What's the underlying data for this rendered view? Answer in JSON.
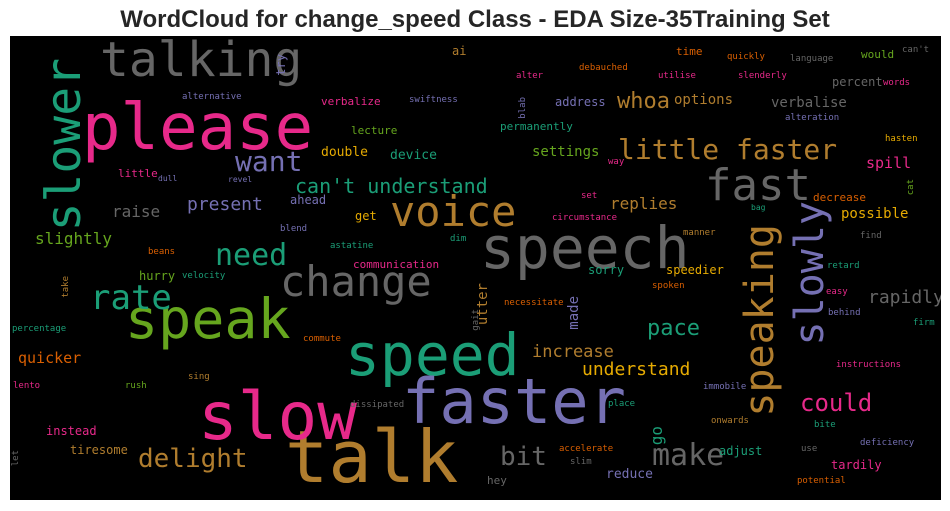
{
  "title": "WordCloud for change_speed Class - EDA Size-35Training Set",
  "words": [
    {
      "t": "talk",
      "c": "#b07d2e"
    },
    {
      "t": "speed",
      "c": "#1b9e77"
    },
    {
      "t": "slow",
      "c": "#e7298a"
    },
    {
      "t": "faster",
      "c": "#7570b3"
    },
    {
      "t": "speech",
      "c": "#666666"
    },
    {
      "t": "please",
      "c": "#e7298a"
    },
    {
      "t": "speak",
      "c": "#66a61e"
    },
    {
      "t": "slower",
      "c": "#1b9e77"
    },
    {
      "t": "talking",
      "c": "#666666"
    },
    {
      "t": "change",
      "c": "#666666"
    },
    {
      "t": "voice",
      "c": "#b07d2e"
    },
    {
      "t": "fast",
      "c": "#666666"
    },
    {
      "t": "speaking",
      "c": "#b07d2e"
    },
    {
      "t": "slowly",
      "c": "#7570b3"
    },
    {
      "t": "rate",
      "c": "#1b9e77"
    },
    {
      "t": "little faster",
      "c": "#b07d2e"
    },
    {
      "t": "need",
      "c": "#1b9e77"
    },
    {
      "t": "want",
      "c": "#7570b3"
    },
    {
      "t": "make",
      "c": "#666666"
    },
    {
      "t": "delight",
      "c": "#b07d2e"
    },
    {
      "t": "could",
      "c": "#e7298a"
    },
    {
      "t": "can't understand",
      "c": "#1b9e77"
    },
    {
      "t": "bit",
      "c": "#666666"
    },
    {
      "t": "pace",
      "c": "#1b9e77"
    },
    {
      "t": "whoa",
      "c": "#b07d2e"
    },
    {
      "t": "present",
      "c": "#7570b3"
    },
    {
      "t": "rapidly",
      "c": "#666666"
    },
    {
      "t": "understand",
      "c": "#e6ab02"
    },
    {
      "t": "increase",
      "c": "#b07d2e"
    },
    {
      "t": "slightly",
      "c": "#66a61e"
    },
    {
      "t": "raise",
      "c": "#666666"
    },
    {
      "t": "replies",
      "c": "#b07d2e"
    },
    {
      "t": "quicker",
      "c": "#d95f02"
    },
    {
      "t": "spill",
      "c": "#e7298a"
    },
    {
      "t": "settings",
      "c": "#66a61e"
    },
    {
      "t": "options",
      "c": "#b07d2e"
    },
    {
      "t": "verbalise",
      "c": "#666666"
    },
    {
      "t": "possible",
      "c": "#e6ab02"
    },
    {
      "t": "made",
      "c": "#7570b3"
    },
    {
      "t": "utter",
      "c": "#b07d2e"
    },
    {
      "t": "go",
      "c": "#1b9e77"
    },
    {
      "t": "adjust",
      "c": "#1b9e77"
    },
    {
      "t": "reduce",
      "c": "#7570b3"
    },
    {
      "t": "tardily",
      "c": "#e7298a"
    },
    {
      "t": "device",
      "c": "#1b9e77"
    },
    {
      "t": "double",
      "c": "#e6ab02"
    },
    {
      "t": "ahead",
      "c": "#7570b3"
    },
    {
      "t": "get",
      "c": "#e6ab02"
    },
    {
      "t": "sorry",
      "c": "#1b9e77"
    },
    {
      "t": "speedier",
      "c": "#e6ab02"
    },
    {
      "t": "hurry",
      "c": "#66a61e"
    },
    {
      "t": "instead",
      "c": "#e7298a"
    },
    {
      "t": "tiresome",
      "c": "#b07d2e"
    },
    {
      "t": "hey",
      "c": "#666666"
    },
    {
      "t": "address",
      "c": "#7570b3"
    },
    {
      "t": "lecture",
      "c": "#66a61e"
    },
    {
      "t": "verbalize",
      "c": "#e7298a"
    },
    {
      "t": "permanently",
      "c": "#1b9e77"
    },
    {
      "t": "ai",
      "c": "#b07d2e"
    },
    {
      "t": "try",
      "c": "#7570b3"
    },
    {
      "t": "time",
      "c": "#d95f02"
    },
    {
      "t": "percent",
      "c": "#666666"
    },
    {
      "t": "would",
      "c": "#66a61e"
    },
    {
      "t": "decrease",
      "c": "#d95f02"
    },
    {
      "t": "little",
      "c": "#e7298a"
    },
    {
      "t": "communication",
      "c": "#e7298a"
    },
    {
      "t": "swiftness",
      "c": "#7570b3"
    },
    {
      "t": "alternative",
      "c": "#7570b3"
    },
    {
      "t": "quickly",
      "c": "#d95f02"
    },
    {
      "t": "language",
      "c": "#666666"
    },
    {
      "t": "can't",
      "c": "#666666"
    },
    {
      "t": "alter",
      "c": "#e7298a"
    },
    {
      "t": "debauched",
      "c": "#d95f02"
    },
    {
      "t": "utilise",
      "c": "#e7298a"
    },
    {
      "t": "slenderly",
      "c": "#e7298a"
    },
    {
      "t": "words",
      "c": "#e7298a"
    },
    {
      "t": "alteration",
      "c": "#7570b3"
    },
    {
      "t": "hasten",
      "c": "#e6ab02"
    },
    {
      "t": "blab",
      "c": "#7570b3"
    },
    {
      "t": "way",
      "c": "#e7298a"
    },
    {
      "t": "cat",
      "c": "#66a61e"
    },
    {
      "t": "dull",
      "c": "#7570b3"
    },
    {
      "t": "revel",
      "c": "#7570b3"
    },
    {
      "t": "set",
      "c": "#e7298a"
    },
    {
      "t": "bag",
      "c": "#1b9e77"
    },
    {
      "t": "circumstance",
      "c": "#e7298a"
    },
    {
      "t": "blend",
      "c": "#7570b3"
    },
    {
      "t": "manner",
      "c": "#b07d2e"
    },
    {
      "t": "beans",
      "c": "#d95f02"
    },
    {
      "t": "astatine",
      "c": "#1b9e77"
    },
    {
      "t": "dim",
      "c": "#1b9e77"
    },
    {
      "t": "find",
      "c": "#666666"
    },
    {
      "t": "take",
      "c": "#b07d2e"
    },
    {
      "t": "velocity",
      "c": "#1b9e77"
    },
    {
      "t": "retard",
      "c": "#1b9e77"
    },
    {
      "t": "spoken",
      "c": "#d95f02"
    },
    {
      "t": "easy",
      "c": "#e7298a"
    },
    {
      "t": "necessitate",
      "c": "#d95f02"
    },
    {
      "t": "gait",
      "c": "#666666"
    },
    {
      "t": "behind",
      "c": "#7570b3"
    },
    {
      "t": "firm",
      "c": "#1b9e77"
    },
    {
      "t": "percentage",
      "c": "#1b9e77"
    },
    {
      "t": "commute",
      "c": "#d95f02"
    },
    {
      "t": "instructions",
      "c": "#e7298a"
    },
    {
      "t": "lento",
      "c": "#e7298a"
    },
    {
      "t": "rush",
      "c": "#66a61e"
    },
    {
      "t": "sing",
      "c": "#b07d2e"
    },
    {
      "t": "immobile",
      "c": "#7570b3"
    },
    {
      "t": "dissipated",
      "c": "#666666"
    },
    {
      "t": "place",
      "c": "#1b9e77"
    },
    {
      "t": "onwards",
      "c": "#b07d2e"
    },
    {
      "t": "bite",
      "c": "#1b9e77"
    },
    {
      "t": "use",
      "c": "#666666"
    },
    {
      "t": "deficiency",
      "c": "#7570b3"
    },
    {
      "t": "let",
      "c": "#666666"
    },
    {
      "t": "accelerate",
      "c": "#d95f02"
    },
    {
      "t": "slim",
      "c": "#666666"
    },
    {
      "t": "potential",
      "c": "#d95f02"
    }
  ]
}
